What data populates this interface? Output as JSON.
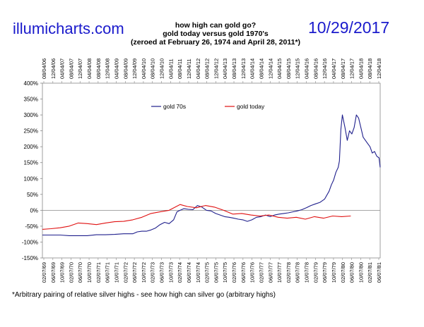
{
  "header": {
    "site": "illumicharts.com",
    "date": "10/29/2017",
    "title_lines": [
      "how high can gold go?",
      "gold today versus gold 1970's",
      "(zeroed at February 26, 1974 and April 28, 2011*)"
    ]
  },
  "footnote": "*Arbitrary pairing of relative silver highs - see how high can silver go (arbitrary highs)",
  "colors": {
    "gold_70s": "#1f1f8c",
    "gold_today": "#e01010",
    "brand": "#1a1acc"
  },
  "chart_data": {
    "type": "line",
    "ylim": [
      -150,
      400
    ],
    "y_ticks": [
      "400%",
      "350%",
      "300%",
      "250%",
      "200%",
      "150%",
      "100%",
      "50%",
      "0%",
      "-50%",
      "-100%",
      "-150%"
    ],
    "x_ticks_top": [
      "08/04/06",
      "12/04/06",
      "04/04/07",
      "08/04/07",
      "12/04/07",
      "04/04/08",
      "08/04/08",
      "12/04/08",
      "04/04/09",
      "08/04/09",
      "12/04/09",
      "04/04/10",
      "08/04/10",
      "12/04/10",
      "04/04/11",
      "08/04/11",
      "12/04/11",
      "04/04/12",
      "08/04/12",
      "12/04/12",
      "04/04/13",
      "08/04/13",
      "12/04/13",
      "04/04/14",
      "08/04/14",
      "12/04/14",
      "04/04/15",
      "08/04/15",
      "12/04/15",
      "04/04/16",
      "08/04/16",
      "12/04/16",
      "04/04/17",
      "08/04/17",
      "12/04/17",
      "04/04/18",
      "08/04/18",
      "12/04/18"
    ],
    "x_ticks_bottom": [
      "02/07/69",
      "06/07/69",
      "10/07/69",
      "02/07/70",
      "06/07/70",
      "10/07/70",
      "02/07/71",
      "06/07/71",
      "10/07/71",
      "02/07/72",
      "06/07/72",
      "10/07/72",
      "02/07/73",
      "06/07/73",
      "10/07/73",
      "02/07/74",
      "06/07/74",
      "10/07/74",
      "02/07/75",
      "06/07/75",
      "10/07/75",
      "02/07/76",
      "06/07/76",
      "10/07/76",
      "02/07/77",
      "06/07/77",
      "10/07/77",
      "02/07/78",
      "06/07/78",
      "10/07/78",
      "02/07/79",
      "06/07/79",
      "10/07/79",
      "02/07/80",
      "06/07/80",
      "10/07/80",
      "02/07/81",
      "06/07/81"
    ],
    "legend": "top-center",
    "series": [
      {
        "name": "gold 70s",
        "color": "#1f1f8c",
        "x": [
          "02/07/69",
          "06/01/69",
          "10/01/69",
          "02/01/70",
          "06/01/70",
          "10/01/70",
          "02/01/71",
          "06/01/71",
          "10/01/71",
          "02/01/72",
          "06/01/72",
          "08/01/72",
          "10/01/72",
          "12/01/72",
          "02/01/73",
          "04/01/73",
          "06/01/73",
          "08/01/73",
          "10/01/73",
          "12/01/73",
          "01/15/74",
          "02/26/74",
          "04/15/74",
          "06/15/74",
          "08/15/74",
          "10/15/74",
          "12/15/74",
          "02/15/75",
          "04/15/75",
          "06/15/75",
          "08/15/75",
          "10/15/75",
          "12/15/75",
          "02/15/76",
          "04/15/76",
          "06/15/76",
          "08/15/76",
          "10/15/76",
          "12/15/76",
          "02/15/77",
          "04/15/77",
          "06/15/77",
          "08/15/77",
          "10/15/77",
          "12/15/77",
          "02/15/78",
          "04/15/78",
          "06/15/78",
          "08/15/78",
          "10/15/78",
          "12/15/78",
          "02/15/79",
          "04/15/79",
          "06/15/79",
          "08/15/79",
          "09/15/79",
          "10/15/79",
          "11/15/79",
          "12/15/79",
          "12/31/79",
          "01/21/80",
          "02/10/80",
          "03/15/80",
          "04/15/80",
          "05/15/80",
          "06/15/80",
          "07/15/80",
          "08/15/80",
          "09/15/80",
          "10/15/80",
          "11/15/80",
          "12/15/80",
          "01/15/81",
          "02/15/81",
          "03/15/81",
          "04/15/81",
          "05/15/81",
          "06/15/81",
          "06/30/81"
        ],
        "values": [
          -78,
          -78,
          -78,
          -80,
          -80,
          -80,
          -77,
          -77,
          -76,
          -74,
          -74,
          -68,
          -66,
          -66,
          -62,
          -56,
          -45,
          -38,
          -42,
          -30,
          -5,
          0,
          5,
          3,
          2,
          15,
          10,
          0,
          -2,
          -10,
          -15,
          -20,
          -22,
          -25,
          -28,
          -30,
          -35,
          -30,
          -22,
          -20,
          -15,
          -20,
          -15,
          -12,
          -10,
          -8,
          -5,
          -2,
          2,
          8,
          15,
          20,
          25,
          35,
          60,
          80,
          95,
          120,
          135,
          155,
          255,
          300,
          260,
          220,
          250,
          240,
          260,
          300,
          290,
          260,
          230,
          220,
          210,
          200,
          180,
          185,
          170,
          165,
          135
        ]
      },
      {
        "name": "gold today",
        "color": "#e01010",
        "x": [
          "02/07/69",
          "06/01/69",
          "10/01/69",
          "02/01/70",
          "06/01/70",
          "10/01/70",
          "02/01/71",
          "06/01/71",
          "10/01/71",
          "02/01/72",
          "06/01/72",
          "10/01/72",
          "02/01/73",
          "06/01/73",
          "10/01/73",
          "02/26/74",
          "06/01/74",
          "10/01/74",
          "02/01/75",
          "06/01/75",
          "10/01/75",
          "02/01/76",
          "06/01/76",
          "10/01/76",
          "02/01/77",
          "06/01/77",
          "10/01/77",
          "02/01/78",
          "06/01/78",
          "10/01/78",
          "02/01/79",
          "06/01/79",
          "10/01/79",
          "02/01/80",
          "06/01/80"
        ],
        "values": [
          -60,
          -58,
          -55,
          -50,
          -40,
          -42,
          -45,
          -40,
          -36,
          -35,
          -30,
          -22,
          -10,
          -5,
          0,
          18,
          12,
          8,
          15,
          10,
          0,
          -12,
          -10,
          -15,
          -18,
          -15,
          -22,
          -25,
          -22,
          -28,
          -20,
          -25,
          -18,
          -20,
          -18
        ]
      }
    ]
  }
}
